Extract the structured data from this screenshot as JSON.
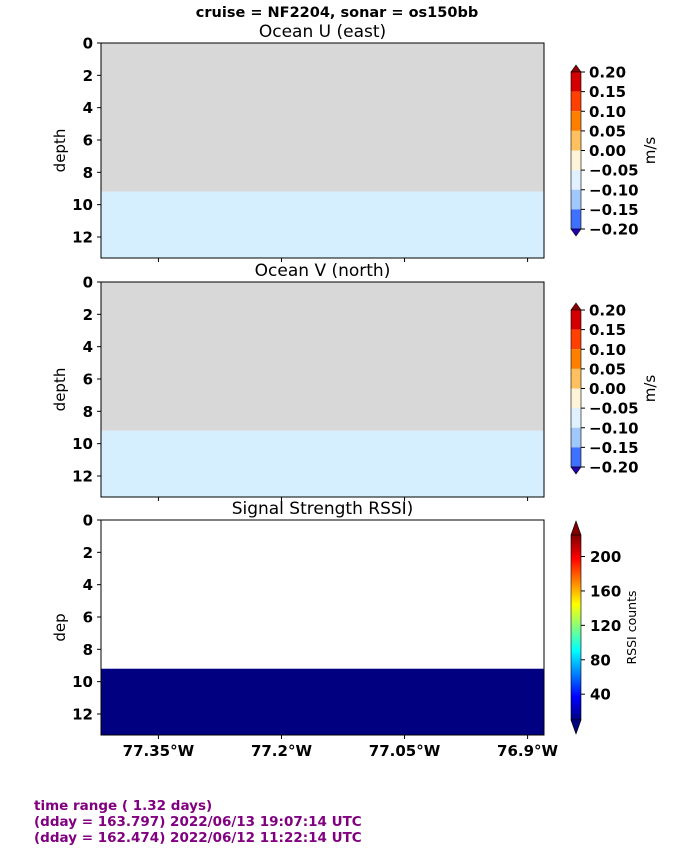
{
  "figure": {
    "suptitle": "cruise = NF2204,  sonar = os150bb"
  },
  "chart_data": [
    {
      "type": "heatmap",
      "title": "Ocean U (east)",
      "ylabel": "depth",
      "y_ticks": [
        "0",
        "2",
        "4",
        "6",
        "8",
        "10",
        "12"
      ],
      "ylim": [
        13.3,
        0
      ],
      "xlim": [
        -77.42,
        -76.88
      ],
      "x_tick_values": [
        -77.35,
        -77.2,
        -77.05,
        -76.9
      ],
      "x_tick_labels": [],
      "bands": [
        {
          "depth_from": 0,
          "depth_to": 9.2,
          "color": "#d8d8d8"
        },
        {
          "depth_from": 9.2,
          "depth_to": 13.3,
          "color": "#d5efff"
        }
      ],
      "colorbar": {
        "label": "m/s",
        "tick_labels": [
          "0.20",
          "0.15",
          "0.10",
          "0.05",
          "0.00",
          "−0.05",
          "−0.10",
          "−0.15",
          "−0.20"
        ],
        "colors": [
          "#d40000",
          "#ff4000",
          "#ff8000",
          "#ffc060",
          "#fff4d8",
          "#e0f0ff",
          "#a0c8ff",
          "#4070ff",
          "#2000e0"
        ],
        "extend_top": "#900000",
        "extend_bottom": "#2000b0"
      }
    },
    {
      "type": "heatmap",
      "title": "Ocean V (north)",
      "ylabel": "depth",
      "y_ticks": [
        "0",
        "2",
        "4",
        "6",
        "8",
        "10",
        "12"
      ],
      "ylim": [
        13.3,
        0
      ],
      "xlim": [
        -77.42,
        -76.88
      ],
      "x_tick_values": [
        -77.35,
        -77.2,
        -77.05,
        -76.9
      ],
      "x_tick_labels": [],
      "bands": [
        {
          "depth_from": 0,
          "depth_to": 9.2,
          "color": "#d8d8d8"
        },
        {
          "depth_from": 9.2,
          "depth_to": 13.3,
          "color": "#d5efff"
        }
      ],
      "colorbar": {
        "label": "m/s",
        "tick_labels": [
          "0.20",
          "0.15",
          "0.10",
          "0.05",
          "0.00",
          "−0.05",
          "−0.10",
          "−0.15",
          "−0.20"
        ],
        "colors": [
          "#d40000",
          "#ff4000",
          "#ff8000",
          "#ffc060",
          "#fff4d8",
          "#e0f0ff",
          "#a0c8ff",
          "#4070ff",
          "#2000e0"
        ],
        "extend_top": "#900000",
        "extend_bottom": "#2000b0"
      }
    },
    {
      "type": "heatmap",
      "title": "Signal Strength RSSI)",
      "ylabel": "dep",
      "y_ticks": [
        "0",
        "2",
        "4",
        "6",
        "8",
        "10",
        "12"
      ],
      "ylim": [
        13.3,
        0
      ],
      "xlim": [
        -77.42,
        -76.88
      ],
      "x_tick_values": [
        -77.35,
        -77.2,
        -77.05,
        -76.9
      ],
      "x_tick_labels": [
        "77.35°W",
        "77.2°W",
        "77.05°W",
        "76.9°W"
      ],
      "bands": [
        {
          "depth_from": 0,
          "depth_to": 9.2,
          "color": "#ffffff"
        },
        {
          "depth_from": 9.2,
          "depth_to": 13.3,
          "color": "#000080"
        }
      ],
      "colorbar": {
        "label": "RSSI counts",
        "type": "continuous",
        "range": [
          10,
          225
        ],
        "tick_values": [
          200,
          160,
          120,
          80,
          40
        ],
        "tick_labels": [
          "200",
          "160",
          "120",
          "80",
          "40"
        ],
        "gradient": [
          "#000080",
          "#0000ff",
          "#0080ff",
          "#00ffff",
          "#80ff80",
          "#ffff00",
          "#ff8000",
          "#ff0000",
          "#800000"
        ]
      }
    }
  ],
  "footer": {
    "line1": "time range ( 1.32 days)",
    "line2": "(dday = 163.797) 2022/06/13 19:07:14 UTC",
    "line3": "(dday = 162.474) 2022/06/12 11:22:14 UTC"
  }
}
